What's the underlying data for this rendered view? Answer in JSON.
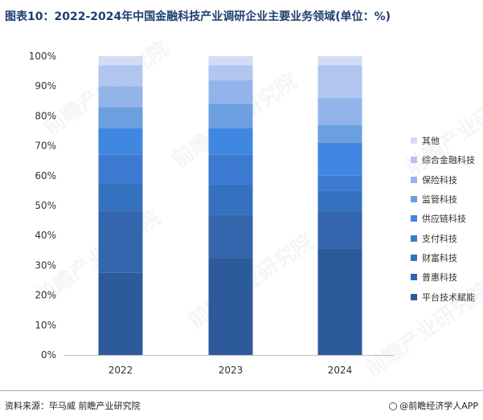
{
  "title": "图表10：2022-2024年中国金融科技产业调研企业主要业务领域(单位：%)",
  "source": "资料来源：毕马威 前瞻产业研究院",
  "brand": "@前瞻经济学人APP",
  "watermark": "前瞻产业研究院",
  "colors": {
    "平台技术赋能": "#2d5a9b",
    "普惠科技": "#3366ad",
    "财富科技": "#3571bf",
    "支付科技": "#3b7ad0",
    "供应链科技": "#3f87e0",
    "监管科技": "#6b9fe0",
    "保险科技": "#92b4ea",
    "综合金融科技": "#b0c6ef",
    "其他": "#d2ddf5"
  },
  "chart_data": {
    "type": "bar",
    "stacked": true,
    "categories": [
      "2022",
      "2023",
      "2024"
    ],
    "ylim": [
      0,
      100
    ],
    "yticks": [
      "0%",
      "10%",
      "20%",
      "30%",
      "40%",
      "50%",
      "60%",
      "70%",
      "80%",
      "90%",
      "100%"
    ],
    "legend_position": "right",
    "series": [
      {
        "name": "平台技术赋能",
        "values": [
          27.5,
          32.5,
          35.5
        ]
      },
      {
        "name": "普惠科技",
        "values": [
          20.5,
          14.5,
          12.5
        ]
      },
      {
        "name": "财富科技",
        "values": [
          9.5,
          10.0,
          7.0
        ]
      },
      {
        "name": "支付科技",
        "values": [
          9.5,
          10.0,
          5.0
        ]
      },
      {
        "name": "供应链科技",
        "values": [
          9.0,
          9.0,
          11.0
        ]
      },
      {
        "name": "监管科技",
        "values": [
          7.0,
          8.0,
          6.0
        ]
      },
      {
        "name": "保险科技",
        "values": [
          7.0,
          8.0,
          9.0
        ]
      },
      {
        "name": "综合金融科技",
        "values": [
          7.0,
          5.0,
          11.0
        ]
      },
      {
        "name": "其他",
        "values": [
          3.0,
          3.0,
          3.0
        ]
      }
    ]
  }
}
